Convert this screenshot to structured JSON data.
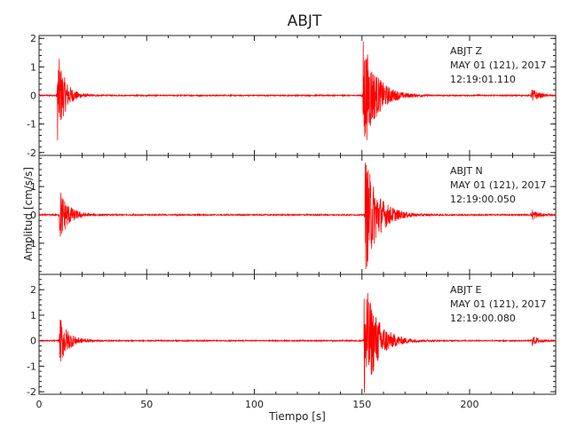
{
  "chart_data": {
    "type": "line",
    "title": "ABJT",
    "xlabel": "Tiempo [s]",
    "ylabel": "Amplitud [cm/s/s]",
    "xlim": [
      0,
      240
    ],
    "x_ticks": [
      "0",
      "50",
      "100",
      "150",
      "200"
    ],
    "x_tick_values": [
      0,
      50,
      100,
      150,
      200
    ],
    "line_color": "#ff0000",
    "panels": [
      {
        "station": "ABJT",
        "component": "Z",
        "date": "MAY 01 (121), 2017",
        "time": "12:19:01.110",
        "ylim": [
          -2.1,
          2.1
        ],
        "y_ticks": [
          "2",
          "1",
          "0",
          "-1",
          "-2"
        ],
        "y_tick_values": [
          2,
          1,
          0,
          -1,
          -2
        ],
        "events": [
          {
            "t": 8.5,
            "amp_pos": 1.6,
            "amp_neg": -1.65,
            "decay": 3.5
          },
          {
            "t": 150.5,
            "amp_pos": 2.1,
            "amp_neg": -2.0,
            "decay": 6
          },
          {
            "t": 229,
            "amp_pos": 0.25,
            "amp_neg": -0.2,
            "decay": 3
          }
        ]
      },
      {
        "station": "ABJT",
        "component": "N",
        "date": "MAY 01 (121), 2017",
        "time": "12:19:00.050",
        "ylim": [
          -2.1,
          2.1
        ],
        "y_ticks": [
          "1",
          "0",
          "-1"
        ],
        "y_tick_values": [
          1,
          0,
          -1
        ],
        "events": [
          {
            "t": 9.5,
            "amp_pos": 1.0,
            "amp_neg": -0.95,
            "decay": 4
          },
          {
            "t": 151.5,
            "amp_pos": 2.0,
            "amp_neg": -2.1,
            "decay": 6
          },
          {
            "t": 229,
            "amp_pos": 0.2,
            "amp_neg": -0.2,
            "decay": 3
          }
        ]
      },
      {
        "station": "ABJT",
        "component": "E",
        "date": "MAY 01 (121), 2017",
        "time": "12:19:00.080",
        "ylim": [
          -2.1,
          2.6
        ],
        "y_ticks": [
          "2",
          "1",
          "0",
          "-1",
          "-2"
        ],
        "y_tick_values": [
          2,
          1,
          0,
          -1,
          -2
        ],
        "events": [
          {
            "t": 9.5,
            "amp_pos": 0.9,
            "amp_neg": -1.0,
            "decay": 4
          },
          {
            "t": 151,
            "amp_pos": 2.5,
            "amp_neg": -2.0,
            "decay": 6
          },
          {
            "t": 229,
            "amp_pos": 0.2,
            "amp_neg": -0.2,
            "decay": 3
          }
        ]
      }
    ]
  }
}
